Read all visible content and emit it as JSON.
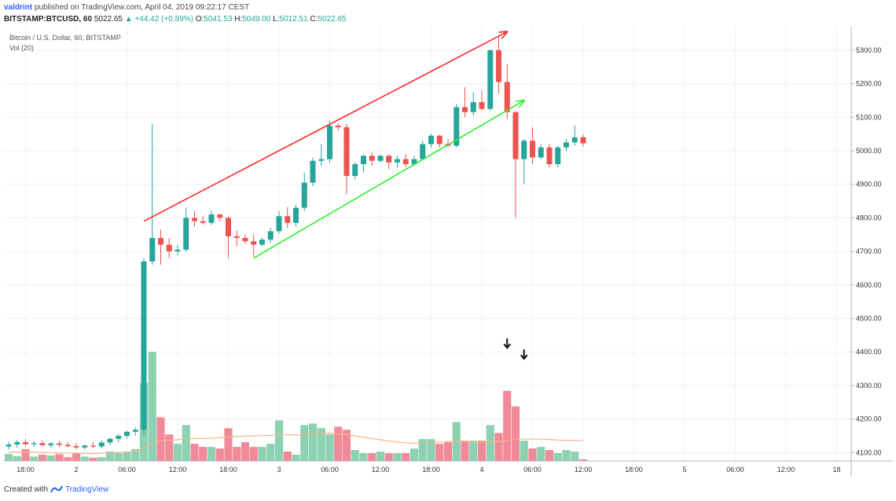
{
  "header": {
    "user": "valdrint",
    "published_text": "published on TradingView.com, April 04, 2019 09:22:17 CEST",
    "symbol": "BITSTAMP:BTCUSD, 60",
    "last": "5022.65",
    "change": "▲ +44.42 (+0.89%)",
    "o_label": "O:",
    "o_value": "5041.53",
    "h_label": "H:",
    "h_value": "5049.00",
    "l_label": "L:",
    "l_value": "5012.51",
    "c_label": "C:",
    "c_value": "5022.65"
  },
  "legend": {
    "title": "Bitcoin / U.S. Dollar, 60, BITSTAMP",
    "volume": "Vol (20)"
  },
  "footer": {
    "created_with": "Created with",
    "brand": "TradingView"
  },
  "colors": {
    "up": "#26a69a",
    "down": "#ef5350",
    "vol_up": "#8cd1b1",
    "vol_down": "#f08a98",
    "vol_ma": "#f5b588",
    "upper_trendline": "#ff2a2a",
    "lower_trendline": "#33ee33",
    "grid": "#eef1f4"
  },
  "chart_data": {
    "type": "candlestick",
    "title": "Bitcoin / U.S. Dollar, 60, BITSTAMP",
    "ylim": [
      4075,
      5370
    ],
    "y_ticks": [
      4100,
      4200,
      4300,
      4400,
      4500,
      4600,
      4700,
      4800,
      4900,
      5000,
      5100,
      5200,
      5300
    ],
    "y_tick_labels": [
      "4100.00",
      "4200.00",
      "4300.00",
      "4400.00",
      "4500.00",
      "4600.00",
      "4700.00",
      "4800.00",
      "4900.00",
      "5000.00",
      "5100.00",
      "5200.00",
      "5300.00"
    ],
    "x_tick_positions": [
      2,
      8,
      14,
      20,
      26,
      32,
      38,
      44,
      50,
      56,
      62,
      68,
      74,
      80,
      86,
      92,
      98
    ],
    "x_tick_labels": [
      "18:00",
      "2",
      "06:00",
      "12:00",
      "18:00",
      "3",
      "06:00",
      "12:00",
      "18:00",
      "4",
      "06:00",
      "12:00",
      "18:00",
      "5",
      "06:00",
      "12:00",
      "18"
    ],
    "candles": [
      {
        "o": 4118,
        "h": 4132,
        "l": 4110,
        "c": 4124,
        "v": 22
      },
      {
        "o": 4124,
        "h": 4138,
        "l": 4114,
        "c": 4131,
        "v": 15
      },
      {
        "o": 4131,
        "h": 4140,
        "l": 4121,
        "c": 4125,
        "v": 38
      },
      {
        "o": 4125,
        "h": 4134,
        "l": 4117,
        "c": 4128,
        "v": 14
      },
      {
        "o": 4128,
        "h": 4137,
        "l": 4119,
        "c": 4122,
        "v": 20
      },
      {
        "o": 4122,
        "h": 4131,
        "l": 4114,
        "c": 4127,
        "v": 18
      },
      {
        "o": 4127,
        "h": 4135,
        "l": 4118,
        "c": 4123,
        "v": 22
      },
      {
        "o": 4123,
        "h": 4131,
        "l": 4116,
        "c": 4119,
        "v": 12
      },
      {
        "o": 4119,
        "h": 4128,
        "l": 4110,
        "c": 4115,
        "v": 25
      },
      {
        "o": 4115,
        "h": 4124,
        "l": 4109,
        "c": 4121,
        "v": 14
      },
      {
        "o": 4121,
        "h": 4131,
        "l": 4113,
        "c": 4118,
        "v": 10
      },
      {
        "o": 4118,
        "h": 4136,
        "l": 4112,
        "c": 4130,
        "v": 12
      },
      {
        "o": 4130,
        "h": 4145,
        "l": 4122,
        "c": 4141,
        "v": 30
      },
      {
        "o": 4141,
        "h": 4155,
        "l": 4132,
        "c": 4150,
        "v": 25
      },
      {
        "o": 4150,
        "h": 4165,
        "l": 4142,
        "c": 4162,
        "v": 30
      },
      {
        "o": 4162,
        "h": 4175,
        "l": 4150,
        "c": 4168,
        "v": 38
      },
      {
        "o": 4168,
        "h": 4680,
        "l": 4150,
        "c": 4670,
        "v": 250
      },
      {
        "o": 4670,
        "h": 5080,
        "l": 4660,
        "c": 4740,
        "v": 350
      },
      {
        "o": 4740,
        "h": 4765,
        "l": 4660,
        "c": 4720,
        "v": 140
      },
      {
        "o": 4720,
        "h": 4740,
        "l": 4680,
        "c": 4700,
        "v": 85
      },
      {
        "o": 4700,
        "h": 4720,
        "l": 4688,
        "c": 4705,
        "v": 55
      },
      {
        "o": 4705,
        "h": 4830,
        "l": 4698,
        "c": 4800,
        "v": 115
      },
      {
        "o": 4800,
        "h": 4820,
        "l": 4775,
        "c": 4790,
        "v": 55
      },
      {
        "o": 4790,
        "h": 4805,
        "l": 4780,
        "c": 4785,
        "v": 45
      },
      {
        "o": 4785,
        "h": 4820,
        "l": 4778,
        "c": 4810,
        "v": 45
      },
      {
        "o": 4810,
        "h": 4812,
        "l": 4790,
        "c": 4800,
        "v": 40
      },
      {
        "o": 4800,
        "h": 4805,
        "l": 4680,
        "c": 4745,
        "v": 105
      },
      {
        "o": 4745,
        "h": 4762,
        "l": 4715,
        "c": 4740,
        "v": 45
      },
      {
        "o": 4740,
        "h": 4750,
        "l": 4722,
        "c": 4730,
        "v": 60
      },
      {
        "o": 4730,
        "h": 4750,
        "l": 4683,
        "c": 4720,
        "v": 45
      },
      {
        "o": 4720,
        "h": 4740,
        "l": 4715,
        "c": 4735,
        "v": 45
      },
      {
        "o": 4735,
        "h": 4770,
        "l": 4725,
        "c": 4760,
        "v": 55
      },
      {
        "o": 4760,
        "h": 4820,
        "l": 4752,
        "c": 4805,
        "v": 130
      },
      {
        "o": 4805,
        "h": 4832,
        "l": 4770,
        "c": 4785,
        "v": 30
      },
      {
        "o": 4785,
        "h": 4840,
        "l": 4775,
        "c": 4830,
        "v": 20
      },
      {
        "o": 4830,
        "h": 4935,
        "l": 4820,
        "c": 4905,
        "v": 115
      },
      {
        "o": 4905,
        "h": 4980,
        "l": 4895,
        "c": 4970,
        "v": 120
      },
      {
        "o": 4970,
        "h": 5020,
        "l": 4955,
        "c": 4975,
        "v": 105
      },
      {
        "o": 4975,
        "h": 5090,
        "l": 4965,
        "c": 5075,
        "v": 85
      },
      {
        "o": 5075,
        "h": 5082,
        "l": 5060,
        "c": 5070,
        "v": 110
      },
      {
        "o": 5070,
        "h": 5080,
        "l": 4870,
        "c": 4925,
        "v": 100
      },
      {
        "o": 4925,
        "h": 4965,
        "l": 4915,
        "c": 4960,
        "v": 35
      },
      {
        "o": 4960,
        "h": 4990,
        "l": 4935,
        "c": 4985,
        "v": 25
      },
      {
        "o": 4985,
        "h": 4995,
        "l": 4955,
        "c": 4970,
        "v": 25
      },
      {
        "o": 4970,
        "h": 4990,
        "l": 4965,
        "c": 4985,
        "v": 30
      },
      {
        "o": 4985,
        "h": 4990,
        "l": 4945,
        "c": 4965,
        "v": 25
      },
      {
        "o": 4965,
        "h": 4985,
        "l": 4950,
        "c": 4975,
        "v": 25
      },
      {
        "o": 4975,
        "h": 4990,
        "l": 4950,
        "c": 4960,
        "v": 25
      },
      {
        "o": 4960,
        "h": 4985,
        "l": 4955,
        "c": 4975,
        "v": 40
      },
      {
        "o": 4975,
        "h": 5030,
        "l": 4972,
        "c": 5020,
        "v": 70
      },
      {
        "o": 5020,
        "h": 5050,
        "l": 5010,
        "c": 5045,
        "v": 70
      },
      {
        "o": 5045,
        "h": 5048,
        "l": 5010,
        "c": 5020,
        "v": 55
      },
      {
        "o": 5020,
        "h": 5035,
        "l": 5010,
        "c": 5015,
        "v": 60
      },
      {
        "o": 5015,
        "h": 5140,
        "l": 5010,
        "c": 5130,
        "v": 125
      },
      {
        "o": 5130,
        "h": 5190,
        "l": 5100,
        "c": 5115,
        "v": 65
      },
      {
        "o": 5115,
        "h": 5175,
        "l": 5105,
        "c": 5145,
        "v": 65
      },
      {
        "o": 5145,
        "h": 5180,
        "l": 5120,
        "c": 5125,
        "v": 65
      },
      {
        "o": 5125,
        "h": 5300,
        "l": 5120,
        "c": 5300,
        "v": 115
      },
      {
        "o": 5300,
        "h": 5345,
        "l": 5170,
        "c": 5205,
        "v": 90
      },
      {
        "o": 5205,
        "h": 5260,
        "l": 5095,
        "c": 5115,
        "v": 225
      },
      {
        "o": 5115,
        "h": 5120,
        "l": 4800,
        "c": 4975,
        "v": 175
      },
      {
        "o": 4975,
        "h": 5035,
        "l": 4900,
        "c": 5030,
        "v": 65
      },
      {
        "o": 5030,
        "h": 5070,
        "l": 4960,
        "c": 4980,
        "v": 40
      },
      {
        "o": 4980,
        "h": 5020,
        "l": 4975,
        "c": 5010,
        "v": 45
      },
      {
        "o": 5010,
        "h": 5020,
        "l": 4950,
        "c": 4960,
        "v": 35
      },
      {
        "o": 4960,
        "h": 5015,
        "l": 4950,
        "c": 5010,
        "v": 25
      },
      {
        "o": 5010,
        "h": 5035,
        "l": 5000,
        "c": 5025,
        "v": 35
      },
      {
        "o": 5025,
        "h": 5075,
        "l": 5015,
        "c": 5040,
        "v": 30
      },
      {
        "o": 5040,
        "h": 5049,
        "l": 5012,
        "c": 5022,
        "v": 5
      }
    ],
    "volume_ma": [
      28,
      28,
      28,
      28,
      27,
      26,
      26,
      25,
      25,
      24,
      24,
      24,
      26,
      27,
      29,
      30,
      42,
      58,
      64,
      66,
      68,
      72,
      72,
      72,
      73,
      74,
      78,
      78,
      80,
      80,
      81,
      82,
      84,
      84,
      83,
      86,
      88,
      88,
      89,
      86,
      84,
      80,
      76,
      72,
      68,
      64,
      61,
      58,
      56,
      58,
      60,
      60,
      62,
      64,
      62,
      60,
      60,
      62,
      62,
      66,
      70,
      70,
      70,
      70,
      69,
      67,
      66,
      66,
      65
    ],
    "trendlines": [
      {
        "from": [
          16,
          4790
        ],
        "to": [
          59,
          5355
        ],
        "arrow": true
      },
      {
        "from": [
          29,
          4680
        ],
        "to": [
          61,
          5150
        ],
        "arrow": true
      }
    ],
    "markers": [
      {
        "type": "arrow-down",
        "x": 59
      },
      {
        "type": "arrow-down",
        "x": 61
      }
    ]
  }
}
